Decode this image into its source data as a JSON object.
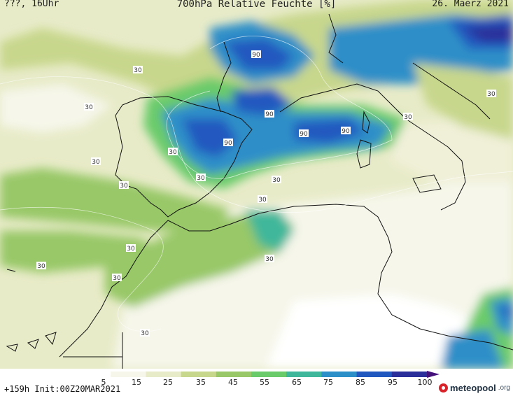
{
  "header": {
    "left": "???, 16Uhr",
    "title": "700hPa Relative Feuchte [%]",
    "date": "26. Maerz 2021"
  },
  "footer": {
    "info": "+159h  Init:00Z20MAR2021",
    "brand_main": "meteopool",
    "brand_tld": ".org"
  },
  "colorbar": {
    "ticks": [
      "5",
      "15",
      "25",
      "35",
      "45",
      "55",
      "65",
      "75",
      "85",
      "95",
      "100"
    ],
    "colors": [
      "#ffffff",
      "#f6f6ea",
      "#e8ebc8",
      "#c7d78c",
      "#98c868",
      "#6acb6a",
      "#3fb79a",
      "#2d8fc8",
      "#2158c0",
      "#2a2f9a",
      "#44107a"
    ]
  },
  "contour_labels": [
    "30",
    "30",
    "30",
    "30",
    "30",
    "30",
    "30",
    "30",
    "30",
    "30",
    "30",
    "30",
    "30",
    "30",
    "30",
    "90",
    "90",
    "90",
    "90",
    "90"
  ]
}
